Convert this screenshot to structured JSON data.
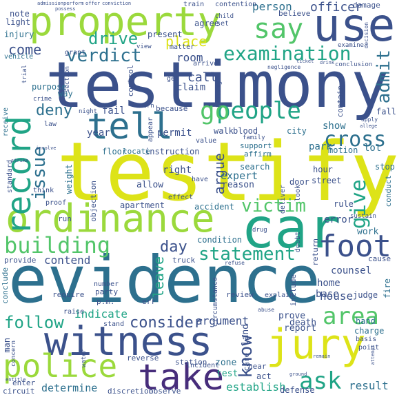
{
  "palette": {
    "yellow": "#dde318",
    "lime": "#9bd93c",
    "green": "#52c569",
    "teal": "#20a486",
    "cyan": "#228c8d",
    "blue": "#2d708e",
    "indigo": "#3b518b",
    "purple": "#472d7b",
    "dark": "#440154"
  },
  "words": {
    "testimony": "testimony",
    "testify": "testify",
    "evidence": "evidence",
    "witness": "witness",
    "property": "property",
    "use": "use",
    "jury": "jury",
    "car": "car",
    "ordinance": "ordinance",
    "tell": "tell",
    "take": "take",
    "police": "police",
    "record": "record",
    "say": "say",
    "foot": "foot",
    "people": "people",
    "verdict": "verdict",
    "examination": "examination",
    "building": "building",
    "statement": "statement",
    "victim": "victim",
    "area": "area",
    "ask": "ask",
    "give": "give",
    "cross": "cross",
    "issue": "issue",
    "know": "know",
    "consider": "consider",
    "follow": "follow",
    "go": "go",
    "drive": "drive",
    "admit": "admit",
    "place": "place",
    "day": "day",
    "deny": "deny",
    "come": "come",
    "officer": "officer",
    "person": "person",
    "argue": "argue",
    "leave": "leave",
    "contend": "contend",
    "indicate": "indicate",
    "argument": "argument",
    "establish": "establish",
    "determine": "determine",
    "result": "result",
    "house": "house",
    "fail": "fail",
    "year": "year",
    "permit": "permit",
    "call": "call",
    "room": "room",
    "claim": "claim",
    "show": "show",
    "lot": "lot",
    "park": "park",
    "expert": "expert",
    "reason": "reason",
    "search": "search",
    "right": "right",
    "allow": "allow",
    "apartment": "apartment",
    "accident": "accident",
    "error": "error",
    "work": "work",
    "counsel": "counsel",
    "condition": "condition",
    "base": "base",
    "home": "home",
    "test": "test",
    "zone": "zone",
    "land": "land",
    "prove": "prove",
    "death": "death",
    "report": "report",
    "hand": "hand",
    "charge": "charge",
    "judge": "judge",
    "fire": "fire",
    "man": "man",
    "note": "note",
    "light": "light",
    "injury": "injury",
    "present": "present",
    "agree": "agree",
    "believe": "believe",
    "damage": "damage",
    "vehicle": "vehicle",
    "purpose": "purpose",
    "way": "way",
    "control": "control",
    "instruction": "instruction",
    "floor": "floor",
    "locate": "locate",
    "blood": "blood",
    "walk": "walk",
    "city": "city",
    "motion": "motion",
    "support": "support",
    "affirm": "affirm",
    "hour": "hour",
    "door": "door",
    "street": "street",
    "rule": "rule",
    "stop": "stop",
    "conduct": "conduct",
    "weight": "weight",
    "objection": "objection",
    "run": "run",
    "proof": "proof",
    "effect": "effect",
    "standard": "standard",
    "think": "think",
    "receive": "receive",
    "provide": "provide",
    "conclude": "conclude",
    "require": "require",
    "number": "number",
    "party": "party",
    "pm": "p.m.",
    "raise": "raise",
    "truck": "truck",
    "review": "review",
    "circumstance": "circumstance",
    "explain": "explain",
    "include": "include",
    "doubt": "doubt",
    "return": "return",
    "cause": "cause",
    "act": "act",
    "defense": "defense",
    "discretion": "discretion",
    "observe": "observe",
    "enter": "enter",
    "circuit": "circuit",
    "station": "station",
    "reverse": "reverse",
    "stand": "stand",
    "incident": "incident",
    "basis": "basis",
    "point": "point",
    "hear": "hear",
    "care": "care",
    "water": "water",
    "concern": "concern",
    "err": "err",
    "contain": "contain",
    "fall": "fall",
    "sustain": "sustain",
    "drug": "drug",
    "refuse": "refuse",
    "deliver": "deliver",
    "look": "look",
    "have": "have",
    "family": "family",
    "value": "value",
    "appear": "appear",
    "crime": "crime",
    "grant": "grant",
    "child": "child",
    "contention": "contention",
    "train": "train",
    "set": "set",
    "view": "view",
    "matter": "matter",
    "arrive": "arrive",
    "negligence": "negligence",
    "conclusion": "conclusion",
    "examine": "examine",
    "decision": "decision",
    "trial": "trial",
    "section": "section",
    "hearing": "hearing",
    "night": "night",
    "law": "law",
    "turn": "turn",
    "because": "because",
    "get": "get",
    "possess": "possess",
    "admission": "admission",
    "perform": "perform",
    "offer": "offer",
    "conviction": "conviction",
    "apply": "apply",
    "allege": "allege",
    "strike": "strike",
    "abuse": "abuse",
    "attempt": "attempt",
    "ground": "ground",
    "remain": "remain",
    "involve": "involve",
    "ticket": "ticket",
    "drink": "drink",
    "entitle": "entitle"
  }
}
